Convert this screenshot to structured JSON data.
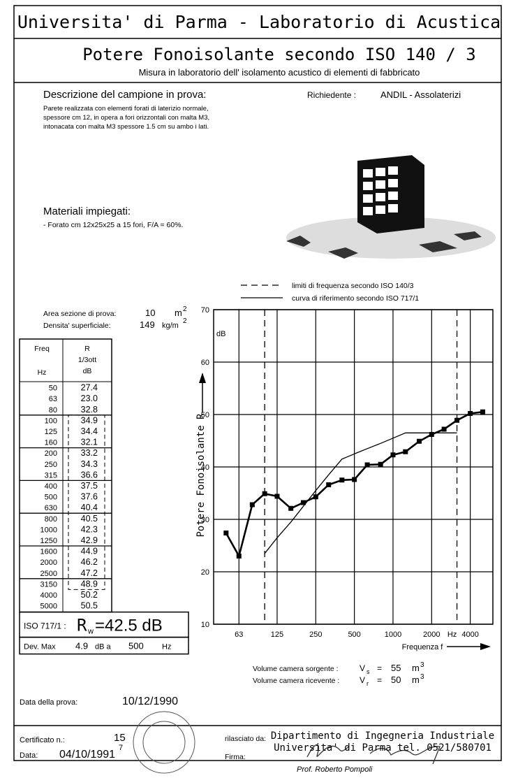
{
  "header": {
    "title": "Universita' di Parma  -  Laboratorio di Acustica",
    "subtitle": "Potere Fonoisolante secondo ISO 140 / 3",
    "description": "Misura in laboratorio dell' isolamento acustico di elementi di fabbricato"
  },
  "sample": {
    "heading": "Descrizione del campione in prova:",
    "lines": [
      "Parete realizzata con elementi forati di laterizio normale,",
      "spessore cm 12, in opera a fori orizzontali con malta M3,",
      "intonacata con malta M3 spessore 1.5 cm su ambo i lati."
    ],
    "requester_label": "Richiedente :",
    "requester": "ANDIL - Assolaterizi"
  },
  "materials": {
    "heading": "Materiali impiegati:",
    "text": "- Forato cm 12x25x25 a 15 fori, F/A = 60%."
  },
  "specimen": {
    "area_label": "Area sezione di prova:",
    "area": "10",
    "area_unit": "m",
    "area_exp": "2",
    "density_label": "Densita' superficiale:",
    "density": "149",
    "density_unit": "kg/m",
    "density_exp": "2"
  },
  "table": {
    "headers": [
      [
        "Freq",
        "Hz"
      ],
      [
        "R",
        "1/3ott",
        "dB"
      ]
    ],
    "rows": [
      [
        "50",
        "27.4"
      ],
      [
        "63",
        "23.0"
      ],
      [
        "80",
        "32.8"
      ],
      [
        "100",
        "34.9"
      ],
      [
        "125",
        "34.4"
      ],
      [
        "160",
        "32.1"
      ],
      [
        "200",
        "33.2"
      ],
      [
        "250",
        "34.3"
      ],
      [
        "315",
        "36.6"
      ],
      [
        "400",
        "37.5"
      ],
      [
        "500",
        "37.6"
      ],
      [
        "630",
        "40.4"
      ],
      [
        "800",
        "40.5"
      ],
      [
        "1000",
        "42.3"
      ],
      [
        "1250",
        "42.9"
      ],
      [
        "1600",
        "44.9"
      ],
      [
        "2000",
        "46.2"
      ],
      [
        "2500",
        "47.2"
      ],
      [
        "3150",
        "48.9"
      ],
      [
        "4000",
        "50.2"
      ],
      [
        "5000",
        "50.5"
      ]
    ]
  },
  "rating": {
    "label": "ISO 717/1 :",
    "symbol": "R",
    "subscript": "w",
    "value": "=42.5 dB",
    "dev_label": "Dev. Max",
    "dev_value": "4.9",
    "dev_at": "dB a",
    "dev_freq": "500",
    "dev_unit": "Hz"
  },
  "chart_data": {
    "type": "line",
    "y_label": "Potere Fonoisolante R",
    "y_unit": "dB",
    "x_label": "Frequenza f",
    "x_unit": "Hz",
    "x_scale": "log",
    "x": [
      50,
      63,
      80,
      100,
      125,
      160,
      200,
      250,
      315,
      400,
      500,
      630,
      800,
      1000,
      1250,
      1600,
      2000,
      2500,
      3150,
      4000,
      5000
    ],
    "xlim": [
      40,
      6000
    ],
    "xticks": [
      63,
      125,
      250,
      500,
      1000,
      2000,
      4000
    ],
    "ylim": [
      10,
      70
    ],
    "yticks": [
      10,
      20,
      30,
      40,
      50,
      60,
      70
    ],
    "grid": true,
    "series": [
      {
        "color": "#000000",
        "marker": "square",
        "values": [
          27.4,
          23.0,
          32.8,
          34.9,
          34.4,
          32.1,
          33.2,
          34.3,
          36.6,
          37.5,
          37.6,
          40.4,
          40.5,
          42.3,
          42.9,
          44.9,
          46.2,
          47.2,
          48.9,
          50.2,
          50.5
        ]
      },
      {
        "name": "curva di riferimento secondo ISO 717/1",
        "color": "#000000",
        "values": [
          null,
          null,
          null,
          23.5,
          26.5,
          29.5,
          32.5,
          35.5,
          38.5,
          41.5,
          42.5,
          43.5,
          44.5,
          45.5,
          46.5,
          46.5,
          46.5,
          46.5,
          46.5,
          null,
          null
        ]
      }
    ],
    "frequency_limits": {
      "name": "limiti di frequenza secondo ISO 140/3",
      "color": "#000000",
      "values": [
        100,
        3150
      ]
    }
  },
  "volumes": [
    {
      "label": "Volume camera sorgente :",
      "symbol": "V",
      "subscript": "s",
      "equals": "=",
      "value": "55",
      "unit": "m",
      "exp": "3"
    },
    {
      "label": "Volume camera ricevente :",
      "symbol": "V",
      "subscript": "r",
      "equals": "=",
      "value": "50",
      "unit": "m",
      "exp": "3"
    }
  ],
  "test_date": {
    "label": "Data della prova:",
    "value": "10/12/1990"
  },
  "footer": {
    "certificate_label": "Certificato n.:",
    "certificate": "15",
    "certificate_note": "7",
    "date_label": "Data:",
    "date": "04/10/1991",
    "issued_label": "rilasciato da:",
    "issuer": [
      "Dipartimento di Ingegneria Industriale",
      "Universita' di Parma tel. 0521/580701"
    ],
    "signature_label": "Firma:",
    "signatory": "Prof. Roberto Pompoli"
  }
}
